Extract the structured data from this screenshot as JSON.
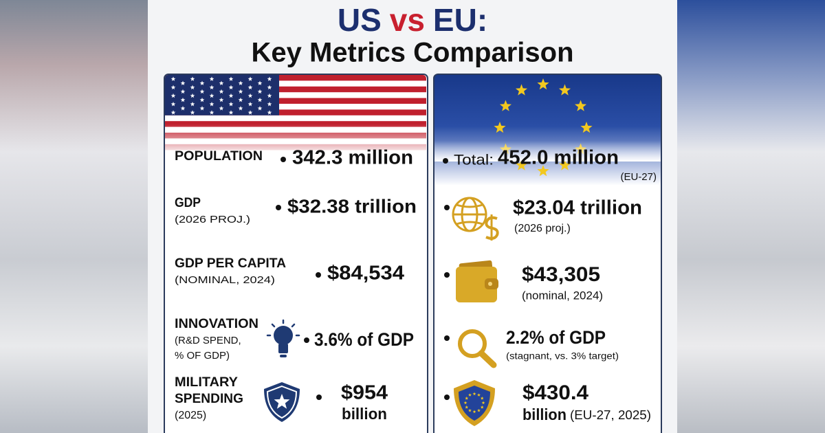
{
  "title": {
    "us": "US",
    "vs": "vs",
    "eu": "EU:",
    "subtitle": "Key Metrics Comparison"
  },
  "us": {
    "population": {
      "label": "POPULATION",
      "value": "342.3 million"
    },
    "gdp": {
      "label": "GDP",
      "note": "(2026 PROJ.)",
      "value": "$32.38 trillion"
    },
    "gdp_per_capita": {
      "label": "GDP PER CAPITA",
      "note": "(NOMINAL, 2024)",
      "value": "$84,534"
    },
    "innovation": {
      "label": "INNOVATION",
      "note_lines": [
        "(R&D SPEND,",
        "% OF GDP)"
      ],
      "value": "3.6% of GDP"
    },
    "military": {
      "label_lines": [
        "MILITARY",
        "SPENDING"
      ],
      "note": "(2025)",
      "value_lines": [
        "$954",
        "billion"
      ]
    }
  },
  "eu": {
    "population": {
      "prefix": "Total:",
      "value": "452.0 million",
      "note": "(EU-27)"
    },
    "gdp": {
      "value": "$23.04 trillion",
      "note": "(2026 proj.)"
    },
    "gdp_per_capita": {
      "value": "$43,305",
      "note": "(nominal, 2024)"
    },
    "innovation": {
      "value": "2.2% of GDP",
      "note": "(stagnant, vs. 3% target)"
    },
    "military": {
      "value_lines": [
        "$430.4",
        "billion"
      ],
      "note": "(EU-27, 2025)"
    }
  }
}
